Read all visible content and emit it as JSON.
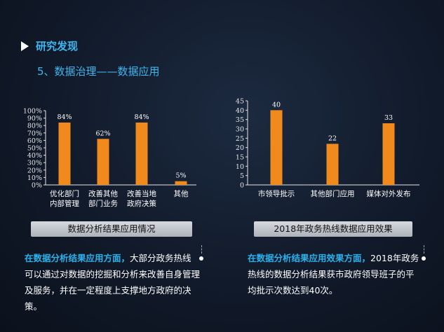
{
  "section": {
    "icon": "play-triangle-icon",
    "title": "研究发现"
  },
  "subtitle": "5、数据治理——数据应用",
  "colors": {
    "bar": "#f08a1c",
    "accent": "#27b3ee",
    "axis": "#e6e6e6"
  },
  "chart_data": [
    {
      "type": "bar",
      "categories": [
        [
          "优化部门",
          "内部管理"
        ],
        [
          "改善其他",
          "部门业务"
        ],
        [
          "改善当地",
          "政府决策"
        ],
        [
          "其他"
        ]
      ],
      "values": [
        84,
        62,
        84,
        5
      ],
      "value_labels": [
        "84%",
        "62%",
        "84%",
        "5%"
      ],
      "ylim": [
        0,
        100
      ],
      "yticks": [
        "0%",
        "10%",
        "20%",
        "30%",
        "40%",
        "50%",
        "60%",
        "70%",
        "80%",
        "90%",
        "100%"
      ],
      "caption": "数据分析结果应用情况"
    },
    {
      "type": "bar",
      "categories": [
        [
          "市领导批示"
        ],
        [
          "其他部门应用"
        ],
        [
          "媒体对外发布"
        ]
      ],
      "values": [
        40,
        22,
        33
      ],
      "value_labels": [
        "40",
        "22",
        "33"
      ],
      "ylim": [
        0,
        45
      ],
      "yticks": [
        "0",
        "5",
        "10",
        "15",
        "20",
        "25",
        "30",
        "35",
        "40",
        "45"
      ],
      "caption": "2018年政务热线数据应用效果"
    }
  ],
  "left_text": {
    "highlight": "在数据分析结果应用方面，",
    "body": "大部分政务热线可以通过对数据的挖掘和分析来改善自身管理及服务，并在一定程度上支撑地方政府的决策。"
  },
  "right_text": {
    "highlight": "在数据分析结果应用效果方面，",
    "body": "2018年政务热线的数据分析结果获市政府领导班子的平均批示次数达到40次。"
  }
}
